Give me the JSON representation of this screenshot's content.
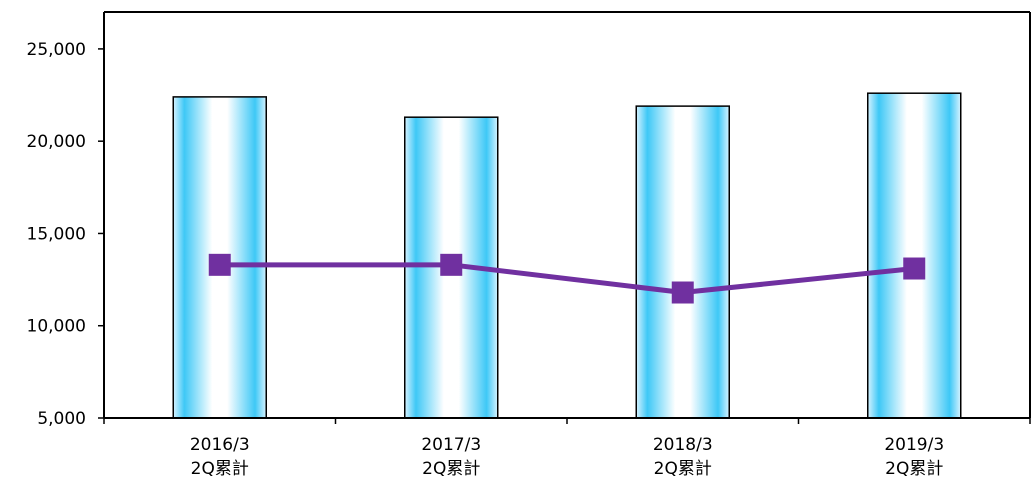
{
  "chart_data": {
    "type": "bar",
    "title": "",
    "xlabel": "",
    "ylabel": "",
    "ylim": [
      5000,
      27000
    ],
    "y_ticks": [
      "5,000",
      "10,000",
      "15,000",
      "20,000",
      "25,000"
    ],
    "y_tick_values": [
      5000,
      10000,
      15000,
      20000,
      25000
    ],
    "categories": [
      {
        "line1": "2016/3",
        "line2": "2Q累計"
      },
      {
        "line1": "2017/3",
        "line2": "2Q累計"
      },
      {
        "line1": "2018/3",
        "line2": "2Q累計"
      },
      {
        "line1": "2019/3",
        "line2": "2Q累計"
      }
    ],
    "series": [
      {
        "type": "bar",
        "values": [
          22400,
          21300,
          21900,
          22600
        ]
      },
      {
        "type": "line",
        "values": [
          13300,
          13300,
          11800,
          13100
        ]
      }
    ],
    "grid": false,
    "legend": "none"
  },
  "colors": {
    "bar_edge": "#d6f2ff",
    "bar_center": "#ffffff",
    "bar_side": "#3ec8f6",
    "bar_outline": "#000000",
    "line": "#7030a0",
    "axis": "#000000",
    "text": "#000000"
  }
}
